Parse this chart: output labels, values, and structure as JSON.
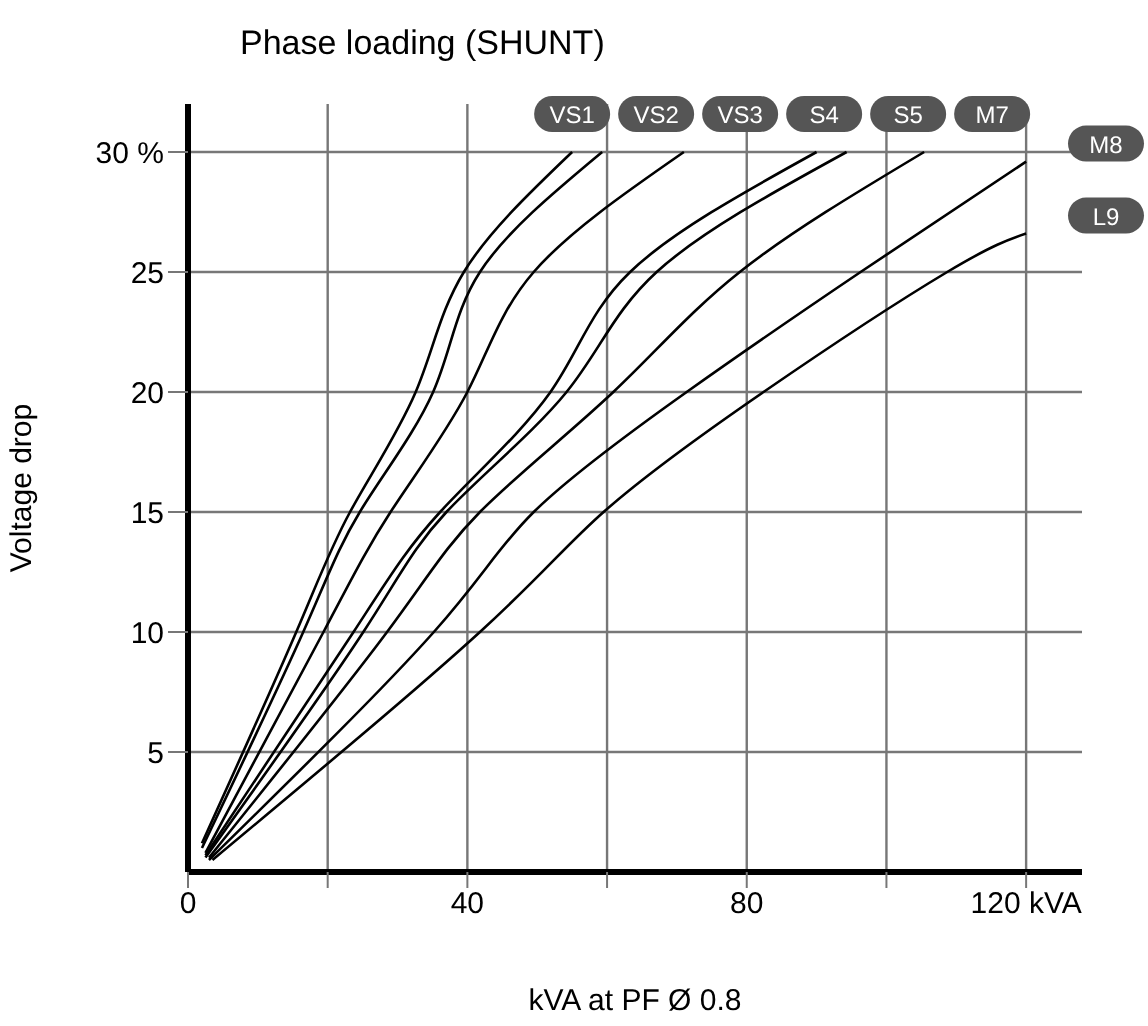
{
  "chart_data": {
    "type": "line",
    "title": "Phase loading (SHUNT)",
    "xlabel": "kVA at PF Ø 0.8",
    "ylabel": "Voltage drop",
    "xlim": [
      0,
      128
    ],
    "ylim": [
      0,
      32
    ],
    "xticks": [
      0,
      {
        "value": 20,
        "label": null
      },
      40,
      {
        "value": 60,
        "label": null
      },
      80,
      {
        "value": 100,
        "label": null
      },
      {
        "value": 120,
        "label": "120 kVA"
      }
    ],
    "yticks": [
      5,
      10,
      15,
      20,
      25,
      {
        "value": 30,
        "label": "30 %"
      }
    ],
    "grid": true,
    "marker": "none",
    "line_style": "solid",
    "series": [
      {
        "name": "VS1",
        "color": "#000000",
        "x": [
          2,
          15.5,
          23.2,
          32.6,
          39.5,
          55
        ],
        "values": [
          1.2,
          10,
          15,
          20,
          25,
          30
        ]
      },
      {
        "name": "VS2",
        "color": "#000000",
        "x": [
          2,
          16.5,
          24.6,
          35.1,
          41.8,
          59.3
        ],
        "values": [
          1.0,
          10,
          15,
          20,
          25,
          30
        ]
      },
      {
        "name": "VS3",
        "color": "#000000",
        "x": [
          2.5,
          19.4,
          29,
          40,
          49.5,
          71
        ],
        "values": [
          0.8,
          10,
          15,
          20,
          25,
          30
        ]
      },
      {
        "name": "S4",
        "color": "#000000",
        "x": [
          2.5,
          23.7,
          36.1,
          51.9,
          63.3,
          90
        ],
        "values": [
          0.7,
          10,
          15,
          20,
          25,
          30
        ]
      },
      {
        "name": "S5",
        "color": "#000000",
        "x": [
          2.5,
          25.1,
          37,
          54.2,
          67.1,
          94.3
        ],
        "values": [
          0.6,
          10,
          15,
          20,
          25,
          30
        ]
      },
      {
        "name": "M7",
        "color": "#000000",
        "x": [
          3,
          28.5,
          41.8,
          60.9,
          79,
          105.4
        ],
        "values": [
          0.6,
          10,
          15,
          20,
          25,
          30
        ]
      },
      {
        "name": "M8",
        "color": "#000000",
        "x": [
          3,
          35.2,
          49.5,
          71.4,
          96.3,
          120
        ],
        "values": [
          0.5,
          10,
          15,
          20,
          25,
          29.6
        ]
      },
      {
        "name": "L9",
        "color": "#000000",
        "x": [
          3.5,
          41.8,
          59.5,
          82.4,
          108.7,
          120
        ],
        "values": [
          0.5,
          10,
          15,
          20,
          25,
          26.6
        ]
      }
    ]
  }
}
